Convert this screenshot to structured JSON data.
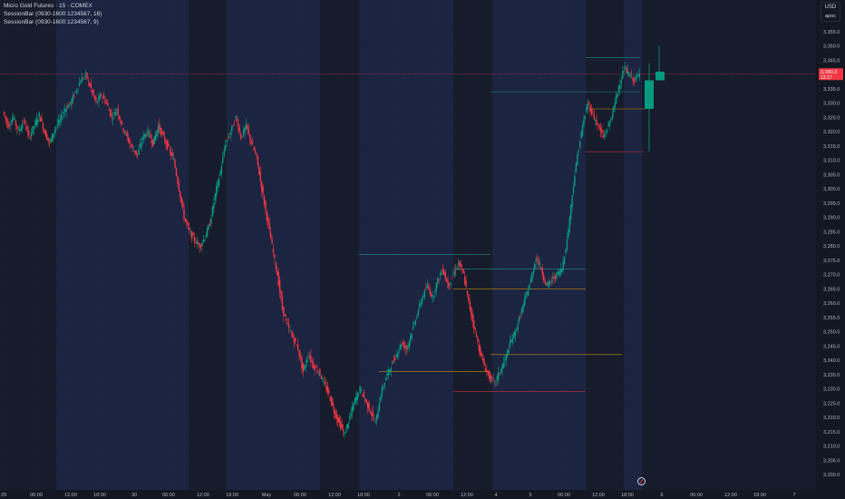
{
  "legend": {
    "symbol": "Micro Gold Futures · 15 · COMEX",
    "indicator1": "SessionBar (0930-1600:1234567, 16)",
    "indicator2": "SessionBar (0930-1600:1234567, 9)"
  },
  "price_axis": {
    "currency": "USD",
    "mode": "apoc"
  },
  "current_price": {
    "value": "3,340.3",
    "countdown": "13:17"
  },
  "colors": {
    "background": "#131722",
    "session_shade": "#1b2440",
    "up": "#089981",
    "down": "#f23645",
    "grid": "#1f2433",
    "axis_text": "#b2b5be"
  },
  "chart_data": {
    "type": "candlestick",
    "title": "Micro Gold Futures · 15 · COMEX",
    "ylim": [
      3195,
      3360
    ],
    "y_ticks": [
      "3,355.0",
      "3,350.0",
      "3,345.0",
      "3,340.0",
      "3,335.0",
      "3,330.0",
      "3,325.0",
      "3,320.0",
      "3,315.0",
      "3,310.0",
      "3,305.0",
      "3,300.0",
      "3,295.0",
      "3,290.0",
      "3,285.0",
      "3,280.0",
      "3,275.0",
      "3,270.0",
      "3,265.0",
      "3,260.0",
      "3,255.0",
      "3,250.0",
      "3,245.0",
      "3,240.0",
      "3,235.0",
      "3,230.0",
      "3,225.0",
      "3,220.0",
      "3,215.0",
      "3,210.0",
      "3,205.0",
      "3,200.0"
    ],
    "x_ticks": [
      "29",
      "06:00",
      "12:00",
      "18:00",
      "30",
      "06:00",
      "12:00",
      "18:00",
      "May",
      "06:00",
      "12:00",
      "18:00",
      "2",
      "06:00",
      "12:00",
      "4",
      "5",
      "06:00",
      "12:00",
      "18:00",
      "6",
      "06:00",
      "12:00",
      "18:00",
      "7"
    ],
    "close_path": [
      3327,
      3322,
      3325,
      3320,
      3324,
      3318,
      3322,
      3326,
      3320,
      3316,
      3321,
      3324,
      3328,
      3330,
      3334,
      3338,
      3340,
      3335,
      3330,
      3333,
      3330,
      3325,
      3328,
      3322,
      3318,
      3314,
      3312,
      3318,
      3320,
      3316,
      3322,
      3318,
      3314,
      3310,
      3300,
      3290,
      3285,
      3282,
      3280,
      3283,
      3288,
      3298,
      3306,
      3316,
      3320,
      3325,
      3318,
      3322,
      3316,
      3311,
      3300,
      3290,
      3280,
      3270,
      3258,
      3252,
      3248,
      3244,
      3236,
      3242,
      3238,
      3236,
      3232,
      3228,
      3222,
      3218,
      3214,
      3220,
      3226,
      3230,
      3226,
      3222,
      3218,
      3228,
      3234,
      3238,
      3242,
      3246,
      3244,
      3250,
      3256,
      3262,
      3266,
      3262,
      3268,
      3272,
      3266,
      3270,
      3274,
      3270,
      3260,
      3252,
      3244,
      3238,
      3234,
      3232,
      3236,
      3240,
      3246,
      3250,
      3256,
      3262,
      3268,
      3276,
      3272,
      3266,
      3268,
      3270,
      3272,
      3282,
      3298,
      3312,
      3322,
      3330,
      3326,
      3322,
      3318,
      3322,
      3328,
      3336,
      3342,
      3340,
      3338,
      3340
    ]
  }
}
